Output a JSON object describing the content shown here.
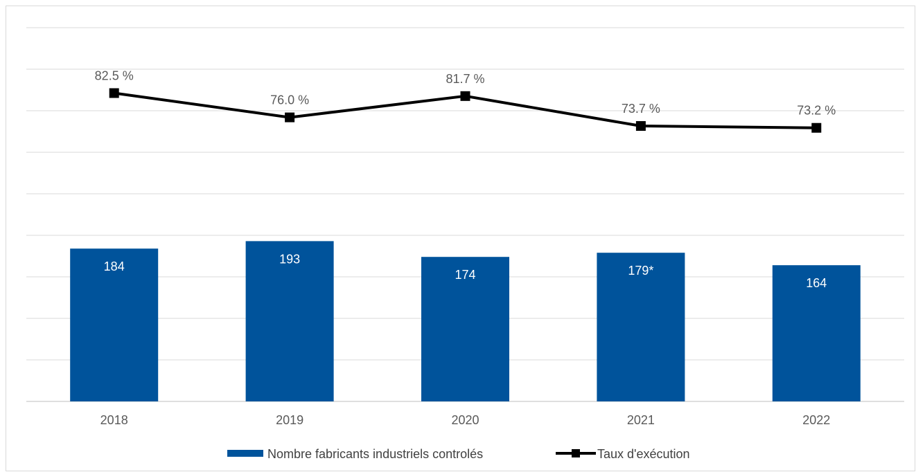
{
  "chart_data": {
    "type": "bar",
    "categories": [
      "2018",
      "2019",
      "2020",
      "2021",
      "2022"
    ],
    "series": [
      {
        "name": "Nombre fabricants industriels controlés",
        "type": "bar",
        "values": [
          184,
          193,
          174,
          179,
          164
        ],
        "labels": [
          "184",
          "193",
          "174",
          "179*",
          "164"
        ],
        "color": "#00539b"
      },
      {
        "name": "Taux d'exécution",
        "type": "line",
        "values": [
          82.5,
          76.0,
          81.7,
          73.7,
          73.2
        ],
        "labels": [
          "82.5 %",
          "76.0 %",
          "81.7 %",
          "73.7 %",
          "73.2 %"
        ],
        "color": "#000000",
        "marker": "square"
      }
    ],
    "grid": true,
    "legend_position": "bottom",
    "bar_axis_range": [
      0,
      450
    ],
    "line_axis_range": [
      0,
      100
    ]
  }
}
